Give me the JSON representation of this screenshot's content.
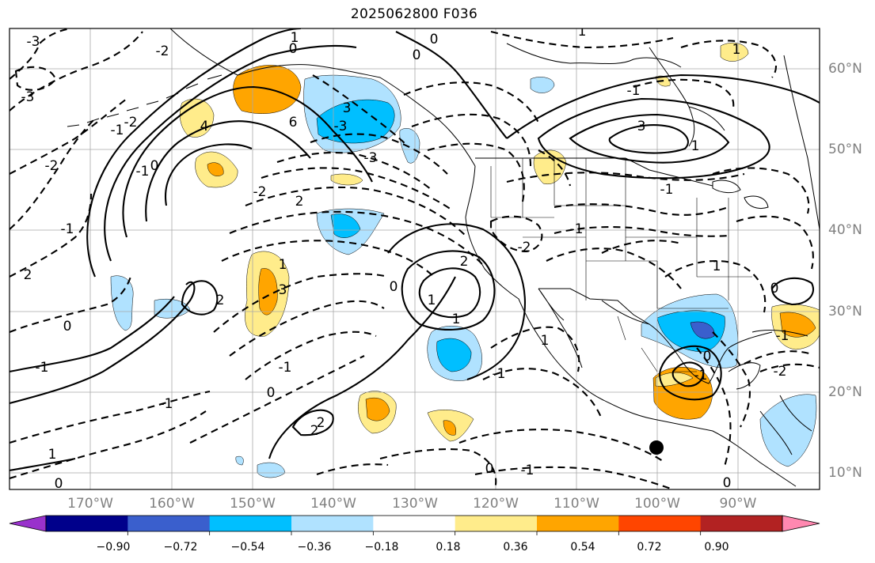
{
  "title": "2025062800 F036",
  "lat_labels": [
    "60°N",
    "50°N",
    "40°N",
    "30°N",
    "20°N",
    "10°N"
  ],
  "lon_labels": [
    "170°W",
    "160°W",
    "150°W",
    "140°W",
    "130°W",
    "120°W",
    "110°W",
    "100°W",
    "90°W"
  ],
  "colorbar": {
    "tick_labels": [
      "−0.90",
      "−0.72",
      "−0.54",
      "−0.36",
      "−0.18",
      "0.18",
      "0.36",
      "0.54",
      "0.72",
      "0.90"
    ],
    "colors": [
      "#9932cc",
      "#00008b",
      "#3a5fcd",
      "#00bfff",
      "#b0e2ff",
      "#ffffff",
      "#ffec8b",
      "#ffa500",
      "#ff4500",
      "#b22222",
      "#ff88b0"
    ]
  },
  "contour_labels": [
    "-3",
    "-2",
    "-3",
    "0",
    "1",
    "-2",
    "-1",
    "-2",
    "-1",
    "0",
    "-1",
    "2",
    "4",
    "3",
    "6",
    "-3",
    "3",
    "1",
    "-2",
    "-3",
    "2",
    "0",
    "2",
    "-1",
    "1",
    "2",
    "0",
    "-1",
    "0",
    "-1",
    "1",
    "-1",
    "0",
    "3",
    "2",
    "0",
    "1",
    "-1",
    "1",
    "-1",
    "-2",
    "1",
    "-1",
    "1",
    "1",
    "-1",
    "0",
    "-2",
    "-1",
    "0",
    "-1",
    "0",
    "2",
    "1",
    "0",
    "0"
  ],
  "marker": "storm-center"
}
